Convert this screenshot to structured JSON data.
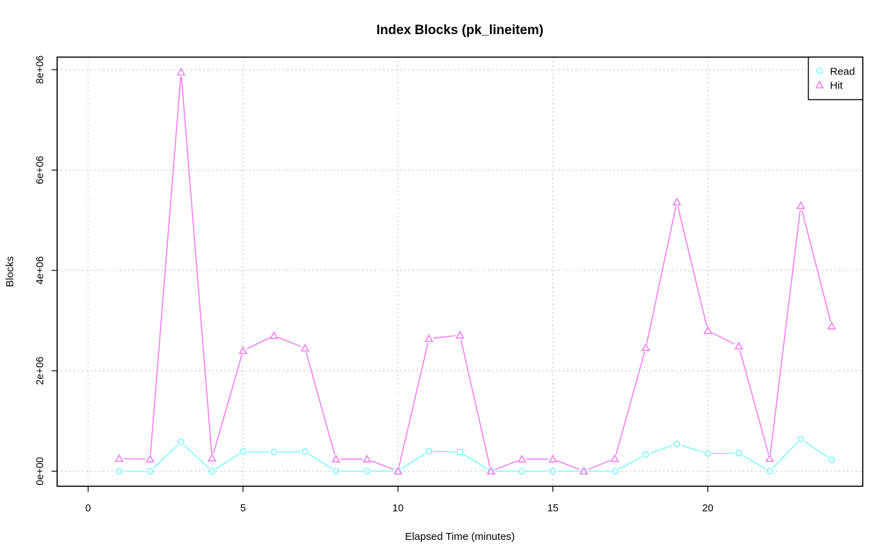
{
  "chart_data": {
    "type": "line",
    "title": "Index Blocks (pk_lineitem)",
    "xlabel": "Elapsed Time (minutes)",
    "ylabel": "Blocks",
    "xlim": [
      -1,
      25
    ],
    "ylim": [
      -300000,
      8250000
    ],
    "x_ticks": [
      0,
      5,
      10,
      15,
      20
    ],
    "x_tick_labels": [
      "0",
      "5",
      "10",
      "15",
      "20"
    ],
    "y_ticks": [
      0,
      2000000,
      4000000,
      6000000,
      8000000
    ],
    "y_tick_labels": [
      "0e+00",
      "2e+06",
      "4e+06",
      "6e+06",
      "8e+06"
    ],
    "grid": true,
    "legend": "top-right",
    "x": [
      1,
      2,
      3,
      4,
      5,
      6,
      7,
      8,
      9,
      10,
      11,
      12,
      13,
      14,
      15,
      16,
      17,
      18,
      19,
      20,
      21,
      22,
      23,
      24
    ],
    "series": [
      {
        "name": "Read",
        "color": "#7ff9fb",
        "marker": "circle",
        "values": [
          0,
          0,
          580000,
          0,
          390000,
          380000,
          390000,
          0,
          0,
          0,
          400000,
          380000,
          0,
          0,
          0,
          0,
          0,
          330000,
          540000,
          350000,
          360000,
          0,
          640000,
          230000
        ]
      },
      {
        "name": "Hit",
        "color": "#f27ff1",
        "marker": "triangle",
        "values": [
          250000,
          240000,
          7950000,
          260000,
          2400000,
          2700000,
          2450000,
          240000,
          240000,
          0,
          2640000,
          2710000,
          0,
          240000,
          240000,
          0,
          250000,
          2460000,
          5360000,
          2800000,
          2490000,
          250000,
          5290000,
          2890000
        ]
      }
    ]
  }
}
